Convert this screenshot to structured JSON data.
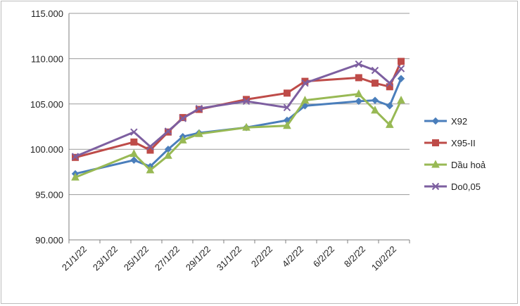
{
  "chart_data": {
    "type": "line",
    "title": "",
    "xlabel": "",
    "ylabel": "",
    "ylim": [
      90000,
      115000
    ],
    "y_ticks": [
      "90.000",
      "95.000",
      "100.000",
      "105.000",
      "110.000",
      "115.000"
    ],
    "y_tick_values": [
      90000,
      95000,
      100000,
      105000,
      110000,
      115000
    ],
    "x_ticks": [
      "21/1/22",
      "23/1/22",
      "25/1/22",
      "27/1/22",
      "29/1/22",
      "31/1/22",
      "2/2/22",
      "4/2/22",
      "6/2/22",
      "8/2/22",
      "10/2/22"
    ],
    "x_range": [
      0,
      20
    ],
    "grid": "horizontal",
    "legend_position": "right",
    "series": [
      {
        "name": "X92",
        "color": "#4a7ebb",
        "marker": "diamond",
        "points": [
          [
            0,
            97300
          ],
          [
            3.6,
            98800
          ],
          [
            4.6,
            98100
          ],
          [
            5.7,
            100000
          ],
          [
            6.6,
            101400
          ],
          [
            7.6,
            101800
          ],
          [
            10.5,
            102400
          ],
          [
            13,
            103200
          ],
          [
            14.1,
            104800
          ],
          [
            17.4,
            105300
          ],
          [
            18.4,
            105400
          ],
          [
            19.3,
            104800
          ],
          [
            20,
            107800
          ]
        ]
      },
      {
        "name": "X95-II",
        "color": "#be4b48",
        "marker": "square",
        "points": [
          [
            0,
            99100
          ],
          [
            3.6,
            100800
          ],
          [
            4.6,
            99900
          ],
          [
            5.7,
            101900
          ],
          [
            6.6,
            103500
          ],
          [
            7.6,
            104400
          ],
          [
            10.5,
            105500
          ],
          [
            13,
            106200
          ],
          [
            14.1,
            107500
          ],
          [
            17.4,
            107900
          ],
          [
            18.4,
            107300
          ],
          [
            19.3,
            106900
          ],
          [
            20,
            109700
          ]
        ]
      },
      {
        "name": "Dầu hoả",
        "color": "#98b954",
        "marker": "triangle",
        "points": [
          [
            0,
            96900
          ],
          [
            3.6,
            99500
          ],
          [
            4.6,
            97700
          ],
          [
            5.7,
            99300
          ],
          [
            6.6,
            101000
          ],
          [
            7.6,
            101700
          ],
          [
            10.5,
            102400
          ],
          [
            13,
            102600
          ],
          [
            14.1,
            105400
          ],
          [
            17.4,
            106100
          ],
          [
            18.4,
            104300
          ],
          [
            19.3,
            102700
          ],
          [
            20,
            105400
          ]
        ]
      },
      {
        "name": "Do0,05",
        "color": "#7d5fa0",
        "marker": "x",
        "points": [
          [
            0,
            99200
          ],
          [
            3.6,
            101900
          ],
          [
            4.6,
            100300
          ],
          [
            5.7,
            102000
          ],
          [
            6.6,
            103400
          ],
          [
            7.6,
            104500
          ],
          [
            10.5,
            105300
          ],
          [
            13,
            104600
          ],
          [
            14.1,
            107300
          ],
          [
            17.4,
            109400
          ],
          [
            18.4,
            108700
          ],
          [
            19.3,
            107300
          ],
          [
            20,
            108900
          ]
        ]
      }
    ]
  }
}
